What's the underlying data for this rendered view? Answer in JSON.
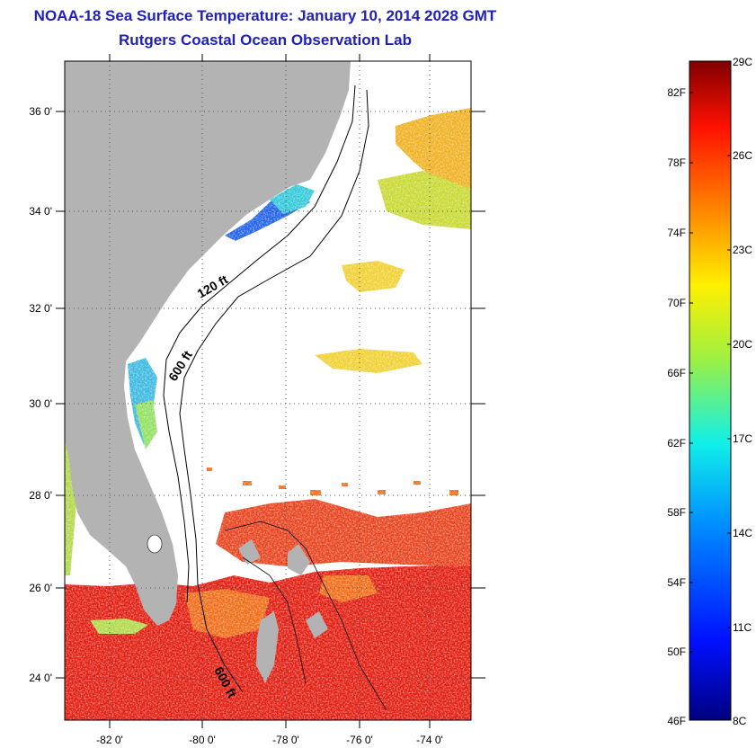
{
  "title": "NOAA-18 Sea Surface Temperature:  January 10, 2014 2028 GMT",
  "subtitle": "Rutgers Coastal Ocean Observation Lab",
  "map": {
    "lon_labels": [
      "-82 0'",
      "-80 0'",
      "-78 0'",
      "-76 0'",
      "-74 0'"
    ],
    "lat_labels": [
      "36 0'",
      "34 0'",
      "32 0'",
      "30 0'",
      "28 0'",
      "26 0'",
      "24 0'"
    ],
    "contour_labels": [
      "120 ft",
      "600 ft",
      "600 ft"
    ],
    "colors": {
      "land": "#b3b3b3",
      "warm": "#e82010",
      "cool": "#1f60e8"
    }
  },
  "colorbar": {
    "fahrenheit_labels": [
      "82F",
      "78F",
      "74F",
      "70F",
      "66F",
      "62F",
      "58F",
      "54F",
      "50F",
      "46F"
    ],
    "celsius_labels": [
      "29C",
      "26C",
      "23C",
      "20C",
      "17C",
      "14C",
      "11C",
      "8C"
    ]
  }
}
